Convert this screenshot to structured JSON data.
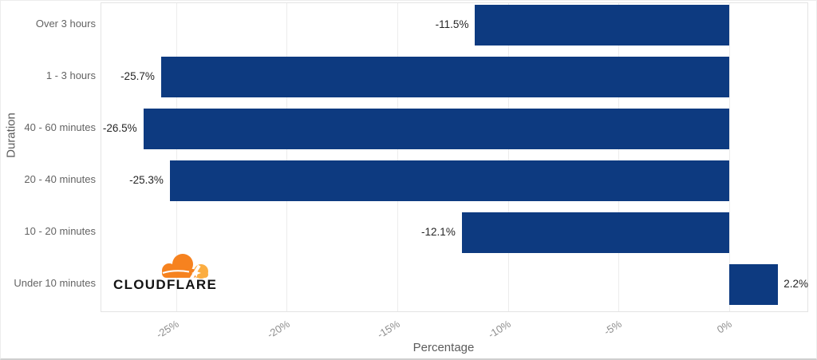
{
  "chart_data": {
    "type": "bar",
    "orientation": "horizontal",
    "categories": [
      "Over 3 hours",
      "1 - 3 hours",
      "40 - 60 minutes",
      "20 - 40 minutes",
      "10 - 20 minutes",
      "Under 10 minutes"
    ],
    "values": [
      -11.5,
      -25.7,
      -26.5,
      -25.3,
      -12.1,
      2.2
    ],
    "value_labels": [
      "-11.5%",
      "-25.7%",
      "-26.5%",
      "-25.3%",
      "-12.1%",
      "2.2%"
    ],
    "xlabel": "Percentage",
    "ylabel": "Duration",
    "ticks": [
      -25,
      -20,
      -15,
      -10,
      -5,
      0
    ],
    "tick_labels": [
      "-25%",
      "-20%",
      "-15%",
      "-10%",
      "-5%",
      "0%"
    ],
    "xlim": [
      -28.4,
      3.6
    ],
    "grid": true,
    "bar_color": "#0d3a80",
    "grid_color": "#ececec"
  },
  "logo": {
    "wordmark": "CLOUDFLARE",
    "cloud_color_dark": "#F6821F",
    "cloud_color_light": "#FBAD41"
  }
}
